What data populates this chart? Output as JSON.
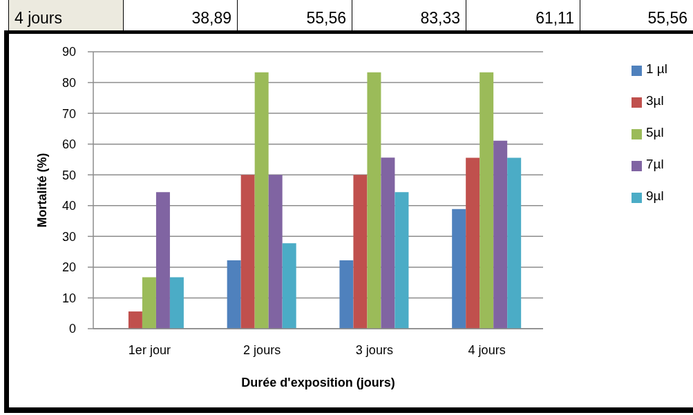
{
  "chart_data": {
    "type": "bar",
    "xlabel": "Durée d'exposition (jours)",
    "ylabel": "Mortalité (%)",
    "categories": [
      "1er jour",
      "2 jours",
      "3 jours",
      "4 jours"
    ],
    "series": [
      {
        "name": "1 µl",
        "color": "#4f81bd",
        "values": [
          0,
          22.2,
          22.2,
          38.89
        ]
      },
      {
        "name": "3µl",
        "color": "#c0504d",
        "values": [
          5.6,
          50,
          50,
          55.56
        ]
      },
      {
        "name": "5µl",
        "color": "#9bbb59",
        "values": [
          16.7,
          83.3,
          83.3,
          83.33
        ]
      },
      {
        "name": "7µl",
        "color": "#8064a2",
        "values": [
          44.4,
          50,
          55.6,
          61.11
        ]
      },
      {
        "name": "9µl",
        "color": "#4bacc6",
        "values": [
          16.7,
          27.8,
          44.4,
          55.56
        ]
      }
    ],
    "ylim": [
      0,
      90
    ],
    "yticks": [
      0,
      10,
      20,
      30,
      40,
      50,
      60,
      70,
      80,
      90
    ],
    "grid": "y",
    "legend": "right",
    "annotations": [
      "4 jours",
      "38,89",
      "55,56",
      "83,33",
      "61,11",
      "55,56"
    ]
  }
}
